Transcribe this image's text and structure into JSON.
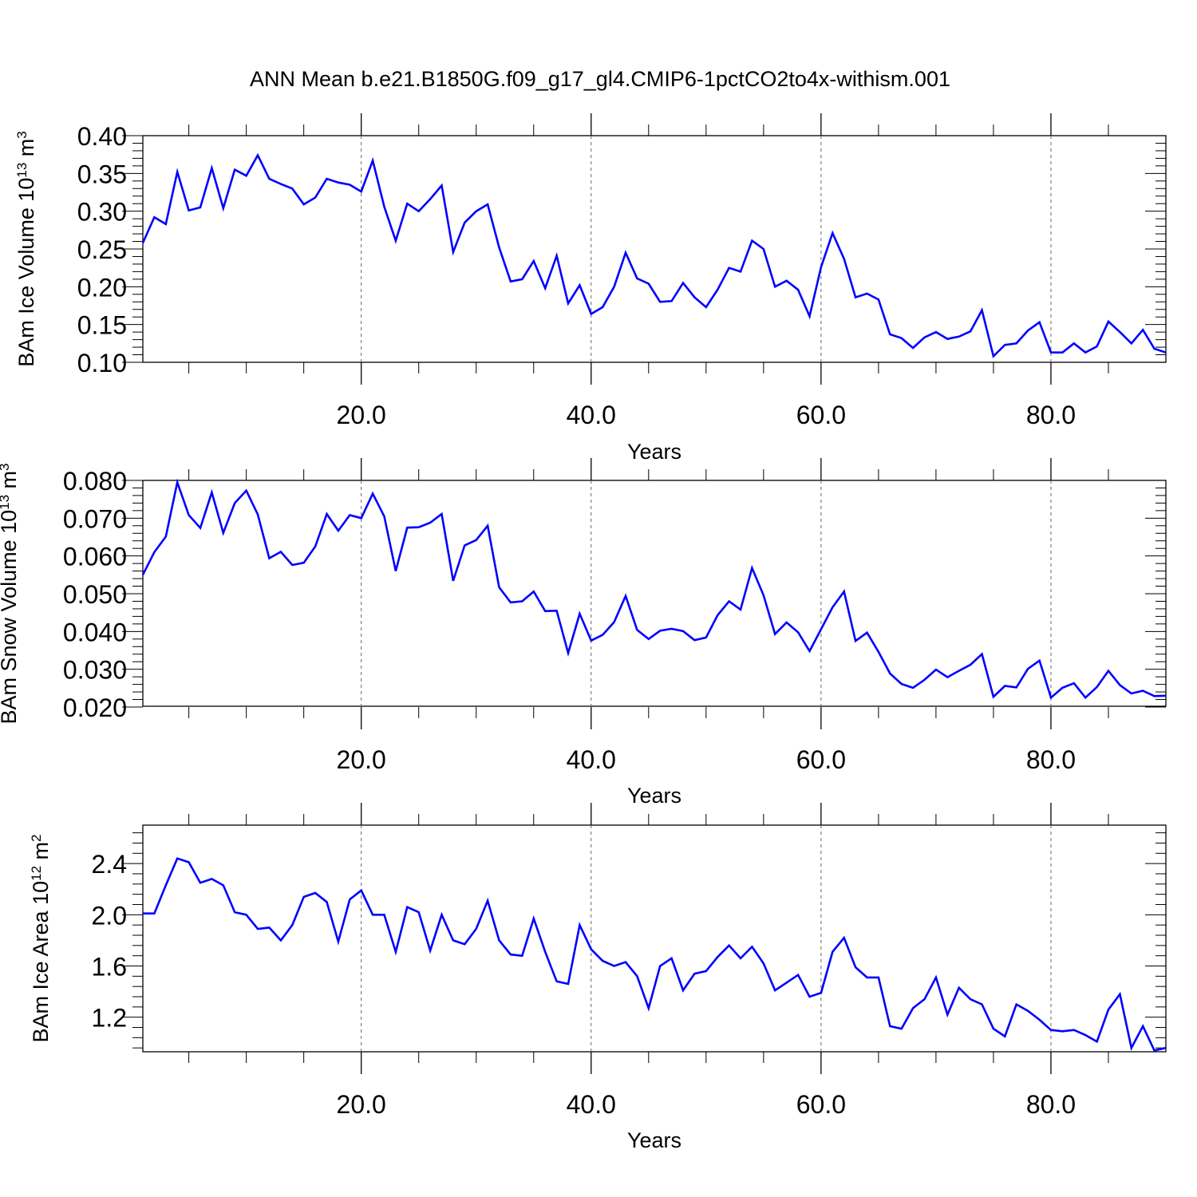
{
  "figure": {
    "title": "ANN Mean b.e21.B1850G.f09_g17_gl4.CMIP6-1pctCO2to4x-withism.001"
  },
  "chart_data": [
    {
      "type": "line",
      "xlabel": "Years",
      "ylabel": "BAm Ice Volume 10",
      "ylabel_exp": "13",
      "ylabel_unit": " m",
      "ylabel_unit_exp": "3",
      "xlim": [
        1,
        90
      ],
      "ylim": [
        0.1,
        0.4
      ],
      "x_ticks": [
        "20.0",
        "40.0",
        "60.0",
        "80.0"
      ],
      "y_ticks": [
        "0.10",
        "0.15",
        "0.20",
        "0.25",
        "0.30",
        "0.35",
        "0.40"
      ],
      "color": "#0000ff",
      "series": [
        {
          "values": [
            0.258,
            0.292,
            0.283,
            0.352,
            0.301,
            0.305,
            0.357,
            0.304,
            0.355,
            0.347,
            0.374,
            0.343,
            0.336,
            0.33,
            0.309,
            0.318,
            0.343,
            0.338,
            0.335,
            0.326,
            0.367,
            0.306,
            0.261,
            0.31,
            0.3,
            0.316,
            0.334,
            0.246,
            0.285,
            0.3,
            0.309,
            0.252,
            0.207,
            0.21,
            0.234,
            0.198,
            0.241,
            0.178,
            0.202,
            0.164,
            0.173,
            0.2,
            0.245,
            0.211,
            0.204,
            0.18,
            0.181,
            0.205,
            0.186,
            0.173,
            0.196,
            0.225,
            0.22,
            0.261,
            0.25,
            0.2,
            0.208,
            0.196,
            0.161,
            0.226,
            0.271,
            0.237,
            0.186,
            0.191,
            0.183,
            0.137,
            0.132,
            0.119,
            0.133,
            0.14,
            0.131,
            0.134,
            0.141,
            0.169,
            0.108,
            0.123,
            0.125,
            0.142,
            0.153,
            0.113,
            0.113,
            0.125,
            0.113,
            0.121,
            0.154,
            0.14,
            0.125,
            0.143,
            0.118,
            0.113
          ]
        }
      ]
    },
    {
      "type": "line",
      "xlabel": "Years",
      "ylabel": "BAm Snow Volume 10",
      "ylabel_exp": "13",
      "ylabel_unit": " m",
      "ylabel_unit_exp": "3",
      "xlim": [
        1,
        90
      ],
      "ylim": [
        0.02,
        0.08
      ],
      "x_ticks": [
        "20.0",
        "40.0",
        "60.0",
        "80.0"
      ],
      "y_ticks": [
        "0.020",
        "0.030",
        "0.040",
        "0.050",
        "0.060",
        "0.070",
        "0.080"
      ],
      "color": "#0000ff",
      "series": [
        {
          "values": [
            0.055,
            0.061,
            0.0651,
            0.0795,
            0.0708,
            0.0674,
            0.0768,
            0.0661,
            0.074,
            0.0773,
            0.071,
            0.0594,
            0.0611,
            0.0576,
            0.0582,
            0.0625,
            0.0711,
            0.0667,
            0.0708,
            0.07,
            0.0765,
            0.0705,
            0.056,
            0.0675,
            0.0676,
            0.0688,
            0.0711,
            0.0534,
            0.0628,
            0.0642,
            0.068,
            0.0517,
            0.0477,
            0.048,
            0.0506,
            0.0454,
            0.0455,
            0.0343,
            0.0447,
            0.0376,
            0.0391,
            0.0425,
            0.0494,
            0.0404,
            0.038,
            0.0402,
            0.0407,
            0.0401,
            0.0377,
            0.0384,
            0.0443,
            0.048,
            0.0458,
            0.0568,
            0.0496,
            0.0393,
            0.0424,
            0.0398,
            0.0348,
            0.0406,
            0.0464,
            0.0506,
            0.0375,
            0.0397,
            0.0346,
            0.0289,
            0.0261,
            0.0251,
            0.0272,
            0.0299,
            0.0279,
            0.0296,
            0.0312,
            0.034,
            0.0227,
            0.0256,
            0.0252,
            0.0301,
            0.0323,
            0.0225,
            0.0251,
            0.0263,
            0.0225,
            0.0253,
            0.0296,
            0.0258,
            0.0236,
            0.0243,
            0.0229,
            0.023
          ]
        }
      ]
    },
    {
      "type": "line",
      "xlabel": "Years",
      "ylabel": "BAm Ice Area 10",
      "ylabel_exp": "12",
      "ylabel_unit": " m",
      "ylabel_unit_exp": "2",
      "xlim": [
        1,
        90
      ],
      "ylim": [
        0.93,
        2.7
      ],
      "x_ticks": [
        "20.0",
        "40.0",
        "60.0",
        "80.0"
      ],
      "y_ticks": [
        "1.2",
        "1.6",
        "2.0",
        "2.4"
      ],
      "color": "#0000ff",
      "series": [
        {
          "values": [
            2.01,
            2.01,
            2.23,
            2.44,
            2.41,
            2.25,
            2.28,
            2.23,
            2.02,
            2.0,
            1.89,
            1.9,
            1.8,
            1.92,
            2.14,
            2.17,
            2.1,
            1.79,
            2.12,
            2.19,
            2.0,
            2.0,
            1.71,
            2.06,
            2.02,
            1.72,
            2.0,
            1.8,
            1.77,
            1.89,
            2.11,
            1.8,
            1.69,
            1.68,
            1.97,
            1.71,
            1.48,
            1.46,
            1.92,
            1.73,
            1.64,
            1.6,
            1.63,
            1.52,
            1.27,
            1.6,
            1.66,
            1.41,
            1.54,
            1.56,
            1.67,
            1.76,
            1.66,
            1.75,
            1.62,
            1.41,
            1.47,
            1.53,
            1.36,
            1.39,
            1.71,
            1.82,
            1.59,
            1.51,
            1.51,
            1.13,
            1.11,
            1.27,
            1.34,
            1.51,
            1.22,
            1.43,
            1.34,
            1.3,
            1.11,
            1.05,
            1.3,
            1.25,
            1.18,
            1.1,
            1.09,
            1.1,
            1.06,
            1.01,
            1.26,
            1.38,
            0.96,
            1.13,
            0.94,
            0.96
          ]
        }
      ]
    }
  ]
}
